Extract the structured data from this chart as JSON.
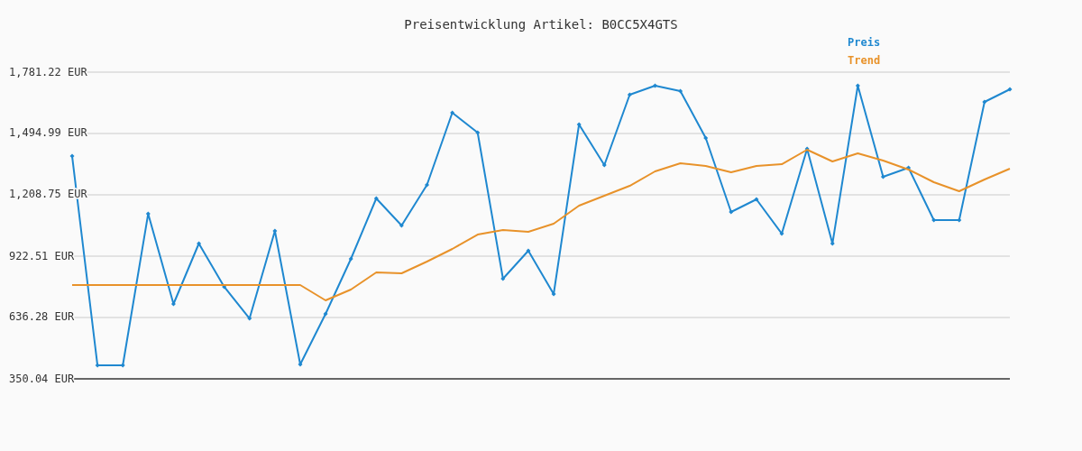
{
  "chart_data": {
    "type": "line",
    "title": "Preisentwicklung Artikel: B0CC5X4GTS",
    "categories": [
      null,
      null,
      null,
      null,
      null,
      null,
      null,
      null,
      null,
      null,
      null,
      null,
      null,
      null,
      null,
      null,
      null,
      null,
      null,
      null,
      null,
      null,
      null,
      null,
      null,
      null,
      null,
      null,
      null,
      null,
      null,
      null,
      null,
      null,
      null,
      null,
      null,
      null
    ],
    "series": [
      {
        "name": "Preis",
        "color": "#1f88d0",
        "marker": "diamond",
        "values": [
          1389.7,
          413.1,
          413.1,
          1120.3,
          699.4,
          981.4,
          779.4,
          632.0,
          1040.3,
          417.4,
          653.1,
          909.9,
          1191.9,
          1065.6,
          1255.0,
          1591.8,
          1499.2,
          817.2,
          947.7,
          745.7,
          1537.1,
          1347.6,
          1676.0,
          1718.1,
          1692.8,
          1473.9,
          1128.7,
          1187.7,
          1027.7,
          1423.4,
          981.4,
          1718.1,
          1292.9,
          1335.0,
          1090.9,
          1090.9,
          1642.3,
          1701.2
        ]
      },
      {
        "name": "Trend",
        "color": "#e8922a",
        "marker": "none",
        "values": [
          787.8,
          787.8,
          787.8,
          787.8,
          787.8,
          787.8,
          787.8,
          787.8,
          787.8,
          787.8,
          716.2,
          766.7,
          846.7,
          842.5,
          897.2,
          956.2,
          1023.5,
          1044.6,
          1036.1,
          1074.0,
          1158.2,
          1204.5,
          1250.8,
          1318.2,
          1356.0,
          1343.4,
          1314.0,
          1343.4,
          1351.8,
          1419.2,
          1364.5,
          1402.4,
          1368.7,
          1326.6,
          1267.7,
          1225.6,
          1280.3,
          1330.8
        ]
      }
    ],
    "ylim": [
      350.04,
      1781.22
    ],
    "yticks": [
      {
        "value": 350.04,
        "label": "350.04 EUR"
      },
      {
        "value": 636.28,
        "label": "636.28 EUR"
      },
      {
        "value": 922.51,
        "label": "922.51 EUR"
      },
      {
        "value": 1208.75,
        "label": "1,208.75 EUR"
      },
      {
        "value": 1494.99,
        "label": "1,494.99 EUR"
      },
      {
        "value": 1781.22,
        "label": "1,781.22 EUR"
      }
    ],
    "grid": "y",
    "legend": "top right",
    "tick_labels": "y"
  }
}
